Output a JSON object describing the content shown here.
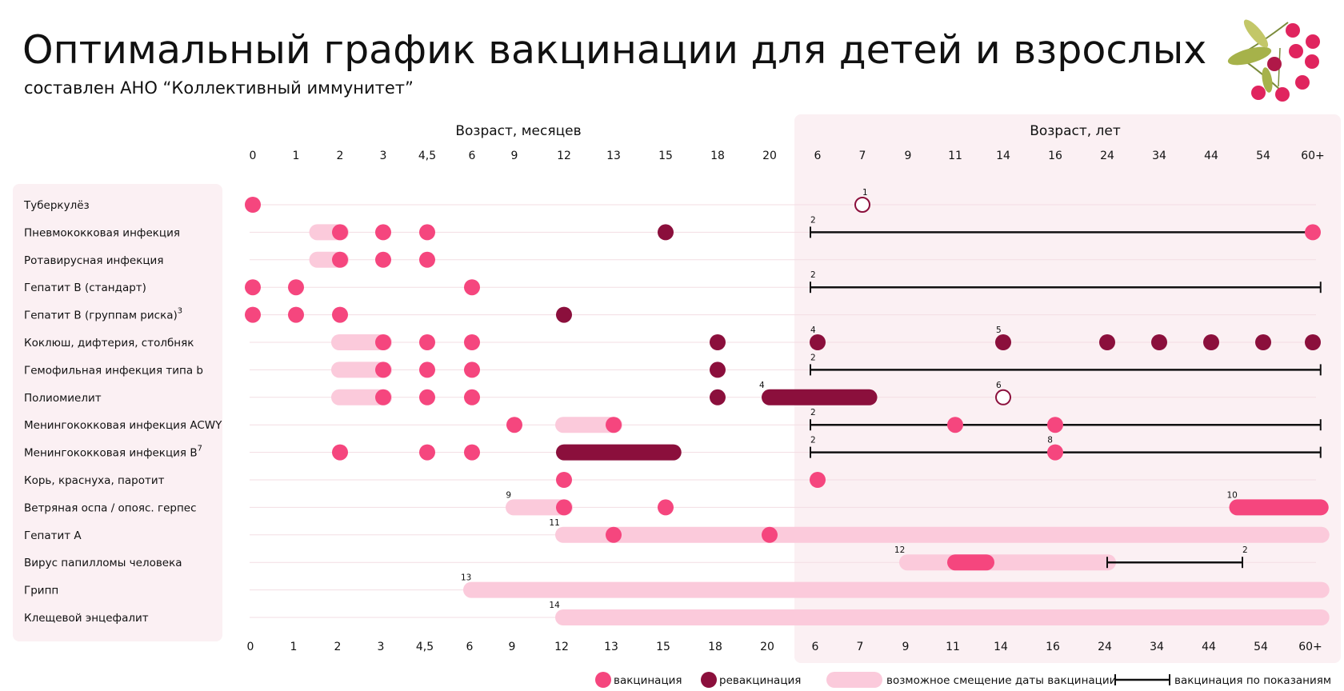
{
  "header": {
    "title": "Оптимальный график вакцинации для детей и взрослых",
    "subtitle": "составлен АНО “Коллективный иммунитет”"
  },
  "colors": {
    "vaccination": "#f5467e",
    "revaccination": "#8b0f3c",
    "shift": "#fbcadb",
    "indication": "#111111",
    "panel": "#fbf0f3",
    "gridline": "#f3dde3"
  },
  "logo": "berry-branch-icon",
  "chart_data": {
    "type": "timeline",
    "axis_months_label": "Возраст, месяцев",
    "axis_years_label": "Возраст, лет",
    "ticks": [
      "0",
      "1",
      "2",
      "3",
      "4,5",
      "6",
      "9",
      "12",
      "13",
      "15",
      "18",
      "20",
      "6",
      "7",
      "9",
      "11",
      "14",
      "16",
      "24",
      "34",
      "44",
      "54",
      "60+"
    ],
    "rows": [
      {
        "label": "Туберкулёз",
        "sup": "",
        "shifts": [],
        "lines": [],
        "bars": [],
        "points": [
          {
            "t": 0,
            "k": "vac"
          },
          {
            "t": 13,
            "k": "open"
          }
        ],
        "notes": [
          {
            "t": 13,
            "text": "1"
          }
        ]
      },
      {
        "label": "Пневмококковая инфекция",
        "sup": "",
        "shifts": [
          [
            1.5,
            2
          ]
        ],
        "lines": [
          [
            11.85,
            22
          ]
        ],
        "bars": [],
        "points": [
          {
            "t": 2,
            "k": "vac"
          },
          {
            "t": 3,
            "k": "vac"
          },
          {
            "t": 4,
            "k": "vac"
          },
          {
            "t": 9,
            "k": "rev"
          },
          {
            "t": 22,
            "k": "vac"
          }
        ],
        "notes": [
          {
            "t": 11.85,
            "text": "2"
          }
        ]
      },
      {
        "label": "Ротавирусная инфекция",
        "sup": "",
        "shifts": [
          [
            1.5,
            2
          ]
        ],
        "lines": [],
        "bars": [],
        "points": [
          {
            "t": 2,
            "k": "vac"
          },
          {
            "t": 3,
            "k": "vac"
          },
          {
            "t": 4,
            "k": "vac"
          }
        ],
        "notes": []
      },
      {
        "label": "Гепатит В (стандарт)",
        "sup": "",
        "shifts": [],
        "lines": [
          [
            11.85,
            22.15
          ]
        ],
        "bars": [],
        "points": [
          {
            "t": 0,
            "k": "vac"
          },
          {
            "t": 1,
            "k": "vac"
          },
          {
            "t": 5,
            "k": "vac"
          }
        ],
        "notes": [
          {
            "t": 11.85,
            "text": "2"
          }
        ]
      },
      {
        "label": "Гепатит В (группам риска)",
        "sup": "3",
        "shifts": [],
        "lines": [],
        "bars": [],
        "points": [
          {
            "t": 0,
            "k": "vac"
          },
          {
            "t": 1,
            "k": "vac"
          },
          {
            "t": 2,
            "k": "vac"
          },
          {
            "t": 7,
            "k": "rev"
          }
        ],
        "notes": []
      },
      {
        "label": "Коклюш, дифтерия, столбняк",
        "sup": "",
        "shifts": [
          [
            2,
            3
          ]
        ],
        "lines": [],
        "bars": [],
        "points": [
          {
            "t": 3,
            "k": "vac"
          },
          {
            "t": 4,
            "k": "vac"
          },
          {
            "t": 5,
            "k": "vac"
          },
          {
            "t": 10,
            "k": "rev"
          },
          {
            "t": 12,
            "k": "rev"
          },
          {
            "t": 16,
            "k": "rev"
          },
          {
            "t": 18,
            "k": "rev"
          },
          {
            "t": 19,
            "k": "rev"
          },
          {
            "t": 20,
            "k": "rev"
          },
          {
            "t": 21,
            "k": "rev"
          },
          {
            "t": 22,
            "k": "rev"
          }
        ],
        "notes": [
          {
            "t": 11.85,
            "text": "4"
          },
          {
            "t": 15.85,
            "text": "5"
          }
        ]
      },
      {
        "label": "Гемофильная инфекция типа b",
        "sup": "",
        "shifts": [
          [
            2,
            3
          ]
        ],
        "lines": [
          [
            11.85,
            22.15
          ]
        ],
        "bars": [],
        "points": [
          {
            "t": 3,
            "k": "vac"
          },
          {
            "t": 4,
            "k": "vac"
          },
          {
            "t": 5,
            "k": "vac"
          },
          {
            "t": 10,
            "k": "rev"
          }
        ],
        "notes": [
          {
            "t": 11.85,
            "text": "2"
          }
        ]
      },
      {
        "label": "Полиомиелит",
        "sup": "",
        "shifts": [
          [
            2,
            3
          ]
        ],
        "lines": [],
        "bars": [
          {
            "from": 11,
            "to": 13.15,
            "k": "rev"
          }
        ],
        "points": [
          {
            "t": 3,
            "k": "vac"
          },
          {
            "t": 4,
            "k": "vac"
          },
          {
            "t": 5,
            "k": "vac"
          },
          {
            "t": 10,
            "k": "rev"
          },
          {
            "t": 16,
            "k": "open"
          }
        ],
        "notes": [
          {
            "t": 10.8,
            "text": "4"
          },
          {
            "t": 15.85,
            "text": "6"
          }
        ]
      },
      {
        "label": "Менингококковая инфекция ACWY",
        "sup": "",
        "shifts": [
          [
            7,
            8
          ]
        ],
        "lines": [
          [
            11.85,
            22.15
          ]
        ],
        "bars": [],
        "points": [
          {
            "t": 6,
            "k": "vac"
          },
          {
            "t": 8,
            "k": "vac"
          },
          {
            "t": 15,
            "k": "vac"
          },
          {
            "t": 17,
            "k": "vac"
          }
        ],
        "notes": [
          {
            "t": 11.85,
            "text": "2"
          }
        ]
      },
      {
        "label": "Менингококковая инфекция В",
        "sup": "7",
        "shifts": [],
        "lines": [
          [
            11.85,
            22.15
          ]
        ],
        "bars": [
          {
            "from": 7,
            "to": 9.15,
            "k": "rev"
          }
        ],
        "points": [
          {
            "t": 2,
            "k": "vac"
          },
          {
            "t": 4,
            "k": "vac"
          },
          {
            "t": 5,
            "k": "vac"
          },
          {
            "t": 17,
            "k": "vac"
          }
        ],
        "notes": [
          {
            "t": 11.85,
            "text": "2"
          },
          {
            "t": 16.85,
            "text": "8"
          }
        ]
      },
      {
        "label": "Корь, краснуха, паротит",
        "sup": "",
        "shifts": [],
        "lines": [],
        "bars": [],
        "points": [
          {
            "t": 7,
            "k": "vac"
          },
          {
            "t": 12,
            "k": "vac"
          }
        ],
        "notes": []
      },
      {
        "label": "Ветряная оспа / опояс. герпес",
        "sup": "",
        "shifts": [
          [
            6,
            7
          ]
        ],
        "lines": [],
        "bars": [
          {
            "from": 20.5,
            "to": 22.15,
            "k": "vac"
          }
        ],
        "points": [
          {
            "t": 7,
            "k": "vac"
          },
          {
            "t": 9,
            "k": "vac"
          }
        ],
        "notes": [
          {
            "t": 5.8,
            "text": "9"
          },
          {
            "t": 20.3,
            "text": "10"
          }
        ]
      },
      {
        "label": "Гепатит А",
        "sup": "",
        "shifts": [
          [
            7,
            22.15
          ]
        ],
        "lines": [],
        "bars": [],
        "points": [
          {
            "t": 8,
            "k": "vac"
          },
          {
            "t": 11,
            "k": "vac"
          }
        ],
        "notes": [
          {
            "t": 6.7,
            "text": "11"
          }
        ]
      },
      {
        "label": "Вирус папилломы человека",
        "sup": "",
        "shifts": [
          [
            14,
            18
          ]
        ],
        "lines": [
          [
            18,
            20.6
          ]
        ],
        "bars": [
          {
            "from": 15,
            "to": 15.65,
            "k": "vac"
          }
        ],
        "points": [],
        "notes": [
          {
            "t": 13.7,
            "text": "12"
          },
          {
            "t": 20.6,
            "text": "2"
          }
        ]
      },
      {
        "label": "Грипп",
        "sup": "",
        "shifts": [
          [
            5,
            22.15
          ]
        ],
        "lines": [],
        "bars": [],
        "points": [],
        "notes": [
          {
            "t": 4.75,
            "text": "13"
          }
        ]
      },
      {
        "label": "Клещевой энцефалит",
        "sup": "",
        "shifts": [
          [
            7,
            22.15
          ]
        ],
        "lines": [],
        "bars": [],
        "points": [],
        "notes": [
          {
            "t": 6.7,
            "text": "14"
          }
        ]
      }
    ]
  },
  "legend": {
    "vaccination": "вакцинация",
    "revaccination": "ревакцинация",
    "shift": "возможное смещение даты вакцинации",
    "indication": "вакцинация по показаниям"
  }
}
